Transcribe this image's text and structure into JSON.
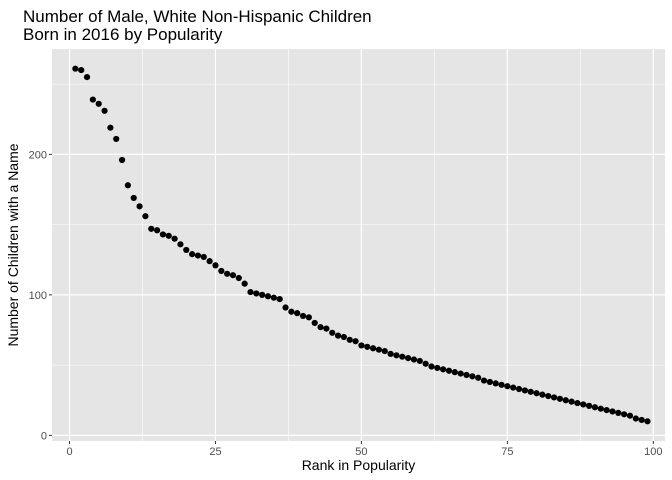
{
  "chart_data": {
    "type": "scatter",
    "title_lines": [
      "Number of Male, White Non-Hispanic Children",
      "Born in 2016 by Popularity"
    ],
    "xlabel": "Rank in Popularity",
    "ylabel": "Number of Children with a Name",
    "xlim": [
      -3,
      102
    ],
    "ylim": [
      -4,
      275
    ],
    "x_ticks": [
      {
        "value": 0,
        "label": "0"
      },
      {
        "value": 25,
        "label": "25"
      },
      {
        "value": 50,
        "label": "50"
      },
      {
        "value": 75,
        "label": "75"
      },
      {
        "value": 100,
        "label": "100"
      }
    ],
    "y_ticks": [
      {
        "value": 0,
        "label": "0"
      },
      {
        "value": 100,
        "label": "100"
      },
      {
        "value": 200,
        "label": "200"
      }
    ],
    "grid": true,
    "panel_color": "#e5e5e5",
    "grid_color": "#ffffff",
    "point_color": "#000000",
    "x": [
      1,
      2,
      3,
      4,
      5,
      6,
      7,
      8,
      9,
      10,
      11,
      12,
      13,
      14,
      15,
      16,
      17,
      18,
      19,
      20,
      21,
      22,
      23,
      24,
      25,
      26,
      27,
      28,
      29,
      30,
      31,
      32,
      33,
      34,
      35,
      36,
      37,
      38,
      39,
      40,
      41,
      42,
      43,
      44,
      45,
      46,
      47,
      48,
      49,
      50,
      51,
      52,
      53,
      54,
      55,
      56,
      57,
      58,
      59,
      60,
      61,
      62,
      63,
      64,
      65,
      66,
      67,
      68,
      69,
      70,
      71,
      72,
      73,
      74,
      75,
      76,
      77,
      78,
      79,
      80,
      81,
      82,
      83,
      84,
      85,
      86,
      87,
      88,
      89,
      90,
      91,
      92,
      93,
      94,
      95,
      96,
      97,
      98,
      99
    ],
    "y": [
      261,
      260,
      255,
      239,
      236,
      231,
      219,
      211,
      196,
      178,
      169,
      163,
      156,
      147,
      146,
      143,
      142,
      140,
      136,
      132,
      129,
      128,
      127,
      124,
      121,
      117,
      115,
      114,
      112,
      108,
      102,
      101,
      100,
      99,
      98,
      97,
      91,
      88,
      87,
      85,
      84,
      80,
      77,
      76,
      73,
      71,
      70,
      68,
      67,
      64,
      63,
      62,
      61,
      60,
      58,
      57,
      56,
      55,
      54,
      53,
      51,
      49,
      48,
      47,
      46,
      45,
      44,
      43,
      42,
      41,
      39,
      38,
      37,
      36,
      35,
      34,
      33,
      32,
      31,
      30,
      29,
      28,
      27,
      26,
      25,
      24,
      23,
      22,
      21,
      20,
      19,
      18,
      17,
      16,
      15,
      14,
      12,
      11,
      10
    ]
  }
}
